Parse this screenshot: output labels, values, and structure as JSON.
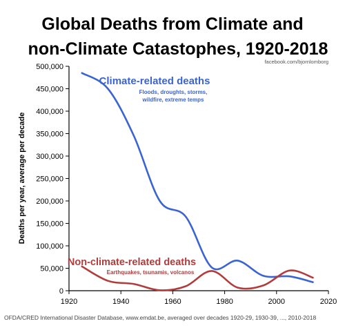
{
  "chart_data": {
    "type": "line",
    "title": "Global Deaths from Climate and non-Climate Catastophes, 1920-2018",
    "title_lines": [
      "Global Deaths from Climate and",
      "non-Climate Catastophes, 1920-2018"
    ],
    "credit": "facebook.com/bjornlomborg",
    "xlabel": "",
    "ylabel": "Deaths per year, average per decade",
    "xlim": [
      1920,
      2020
    ],
    "ylim": [
      0,
      500000
    ],
    "x_ticks": [
      1920,
      1940,
      1960,
      1980,
      2000,
      2020
    ],
    "y_ticks": [
      "0",
      "50,000",
      "100,000",
      "150,000",
      "200,000",
      "250,000",
      "300,000",
      "350,000",
      "400,000",
      "450,000",
      "500,000"
    ],
    "grid": false,
    "source": "OFDA/CRED International Disaster Database, www.emdat.be, averaged over decades 1920-29, 1930-39, ..., 2010-2018",
    "series": [
      {
        "name": "Climate-related deaths",
        "note_lines": [
          "Floods, droughts, storms,",
          "wildfire, extreme temps"
        ],
        "color": "#3a63d4",
        "x": [
          1925,
          1935,
          1945,
          1955,
          1965,
          1975,
          1985,
          1995,
          2005,
          2014
        ],
        "y": [
          485000,
          450000,
          345000,
          200000,
          165000,
          52000,
          67000,
          33000,
          32000,
          19000
        ]
      },
      {
        "name": "Non-climate-related deaths",
        "note_lines": [
          "Earthquakes, tsunamis, volcanos"
        ],
        "color": "#b23b3b",
        "x": [
          1925,
          1935,
          1945,
          1955,
          1965,
          1975,
          1985,
          1995,
          2005,
          2014
        ],
        "y": [
          54000,
          22000,
          15000,
          1000,
          10000,
          44000,
          7000,
          12000,
          45000,
          29000
        ]
      }
    ]
  }
}
